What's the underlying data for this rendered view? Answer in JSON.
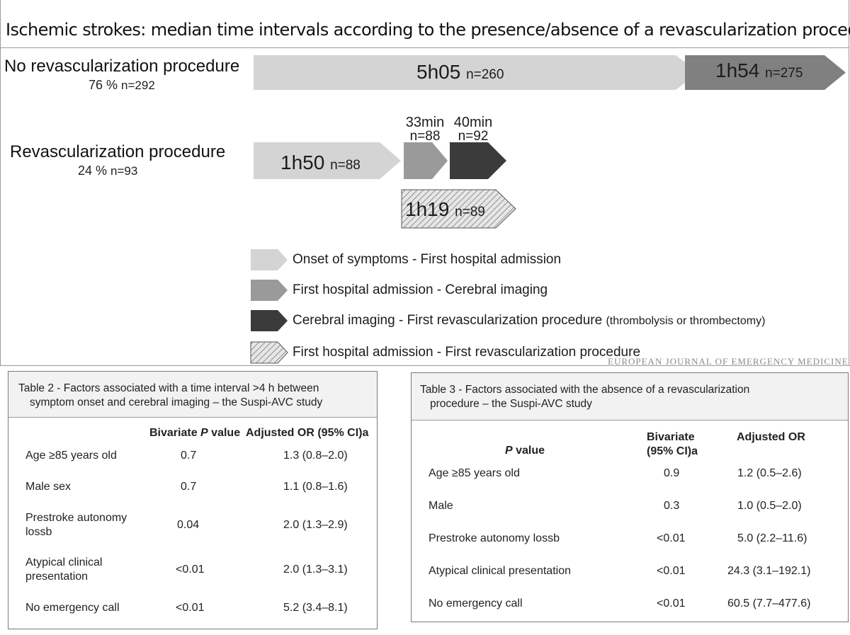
{
  "title": "Ischemic strokes: median time intervals according to the presence/absence of a revascularization procedure",
  "colors": {
    "light": "#d4d4d4",
    "medium": "#9a9a9a",
    "dark": "#3b3b3b",
    "dark_bar": "#808080",
    "hatch_bg": "#e6e6e6",
    "hatch_line": "#6a6a6a"
  },
  "groups": {
    "no_revasc": {
      "name": "No revascularization procedure",
      "percent": "76 %",
      "n": "n=292",
      "segments": [
        {
          "value": "5h05",
          "n": "n=260",
          "fill": "light"
        },
        {
          "value": "1h54",
          "n": "n=275",
          "fill": "dark_bar"
        }
      ]
    },
    "revasc": {
      "name": "Revascularization procedure",
      "percent": "24 %",
      "n": "n=93",
      "segments": [
        {
          "value": "1h50",
          "n": "n=88",
          "fill": "light"
        },
        {
          "value": "33min",
          "n": "n=88",
          "fill": "medium"
        },
        {
          "value": "40min",
          "n": "n=92",
          "fill": "dark"
        }
      ],
      "combined": {
        "value": "1h19",
        "n": "n=89",
        "fill": "hatch"
      }
    }
  },
  "legend": [
    {
      "label": "Onset of symptoms - First hospital admission",
      "paren": "",
      "fill": "light"
    },
    {
      "label": "First hospital admission - Cerebral imaging",
      "paren": "",
      "fill": "medium"
    },
    {
      "label": "Cerebral imaging - First revascularization procedure",
      "paren": "(thrombolysis or thrombectomy)",
      "fill": "dark"
    },
    {
      "label": "First hospital admission - First revascularization procedure",
      "paren": "",
      "fill": "hatch"
    }
  ],
  "watermark": "EUROPEAN JOURNAL OF EMERGENCY MEDICINE",
  "table2": {
    "caption_line1": "Table 2 - Factors associated with a time interval >4 h between",
    "caption_line2": "symptom onset and cerebral imaging – the Suspi-AVC study",
    "columns": [
      "Bivariate P value",
      "Adjusted OR (95% CI)a"
    ],
    "col_b_prefix": "Bivariate",
    "col_b_italic": "P",
    "col_b_suffix": "value",
    "col_c": "Adjusted OR (95% CI)a",
    "rows": [
      {
        "factor": "Age ≥85 years old",
        "p": "0.7",
        "or": "1.3 (0.8–2.0)"
      },
      {
        "factor": "Male sex",
        "p": "0.7",
        "or": "1.1 (0.8–1.6)"
      },
      {
        "factor": "Prestroke autonomy lossb",
        "p": "0.04",
        "or": "2.0 (1.3–2.9)"
      },
      {
        "factor": "Atypical clinical presentation",
        "p": "<0.01",
        "or": "2.0 (1.3–3.1)"
      },
      {
        "factor": "No emergency call",
        "p": "<0.01",
        "or": "5.2 (3.4–8.1)"
      }
    ]
  },
  "table3": {
    "caption_line1": "Table 3 - Factors associated with the absence of a revascularization",
    "caption_line2": "procedure – the Suspi-AVC study",
    "col_a_italic": "P",
    "col_a_suffix": "value",
    "col_b_line1": "Bivariate",
    "col_b_line2": "(95% CI)a",
    "col_c": "Adjusted OR",
    "rows": [
      {
        "factor": "Age ≥85 years old",
        "p": "0.9",
        "or": "1.2 (0.5–2.6)"
      },
      {
        "factor": "Male",
        "p": "0.3",
        "or": "1.0 (0.5–2.0)"
      },
      {
        "factor": "Prestroke autonomy lossb",
        "p": "<0.01",
        "or": "5.0 (2.2–11.6)"
      },
      {
        "factor": "Atypical clinical presentation",
        "p": "<0.01",
        "or": "24.3 (3.1–192.1)"
      },
      {
        "factor": "No emergency call",
        "p": "<0.01",
        "or": "60.5 (7.7–477.6)"
      }
    ]
  }
}
